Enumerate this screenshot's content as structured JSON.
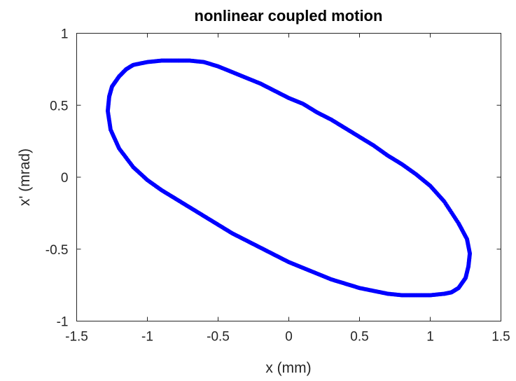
{
  "chart_data": {
    "type": "scatter",
    "title": "nonlinear coupled motion",
    "xlabel": "x (mm)",
    "ylabel": "x' (mrad)",
    "xlim": [
      -1.5,
      1.5
    ],
    "ylim": [
      -1,
      1
    ],
    "xticks": [
      -1.5,
      -1,
      -0.5,
      0,
      0.5,
      1,
      1.5
    ],
    "yticks": [
      -1,
      -0.5,
      0,
      0.5,
      1
    ],
    "xtick_labels": [
      "-1.5",
      "-1",
      "-0.5",
      "0",
      "0.5",
      "1",
      "1.5"
    ],
    "ytick_labels": [
      "-1",
      "-0.5",
      "0",
      "0.5",
      "1"
    ],
    "grid": false,
    "series": [
      {
        "color": "#0000ff",
        "marker": "dot",
        "x": [
          1.2,
          1.26,
          1.28,
          1.27,
          1.25,
          1.2,
          1.15,
          1.1,
          1.0,
          0.9,
          0.8,
          0.7,
          0.6,
          0.5,
          0.4,
          0.3,
          0.2,
          0.1,
          0.0,
          -0.1,
          -0.2,
          -0.3,
          -0.4,
          -0.5,
          -0.6,
          -0.7,
          -0.8,
          -0.9,
          -1.0,
          -1.1,
          -1.2,
          -1.26,
          -1.28,
          -1.27,
          -1.25,
          -1.2,
          -1.15,
          -1.1,
          -1.0,
          -0.9,
          -0.8,
          -0.7,
          -0.6,
          -0.5,
          -0.4,
          -0.3,
          -0.2,
          -0.1,
          0.0,
          0.1,
          0.2,
          0.3,
          0.4,
          0.5,
          0.6,
          0.7,
          0.8,
          0.9,
          1.0,
          1.1,
          1.2
        ],
        "y": [
          -0.32,
          -0.43,
          -0.53,
          -0.62,
          -0.7,
          -0.77,
          -0.8,
          -0.81,
          -0.82,
          -0.82,
          -0.82,
          -0.81,
          -0.79,
          -0.77,
          -0.74,
          -0.71,
          -0.67,
          -0.63,
          -0.59,
          -0.54,
          -0.49,
          -0.44,
          -0.39,
          -0.33,
          -0.27,
          -0.21,
          -0.15,
          -0.09,
          -0.02,
          0.07,
          0.2,
          0.33,
          0.46,
          0.56,
          0.63,
          0.7,
          0.75,
          0.78,
          0.8,
          0.81,
          0.81,
          0.81,
          0.8,
          0.77,
          0.73,
          0.69,
          0.65,
          0.6,
          0.55,
          0.51,
          0.45,
          0.4,
          0.34,
          0.28,
          0.22,
          0.15,
          0.09,
          0.02,
          -0.06,
          -0.17,
          -0.32
        ]
      }
    ]
  }
}
